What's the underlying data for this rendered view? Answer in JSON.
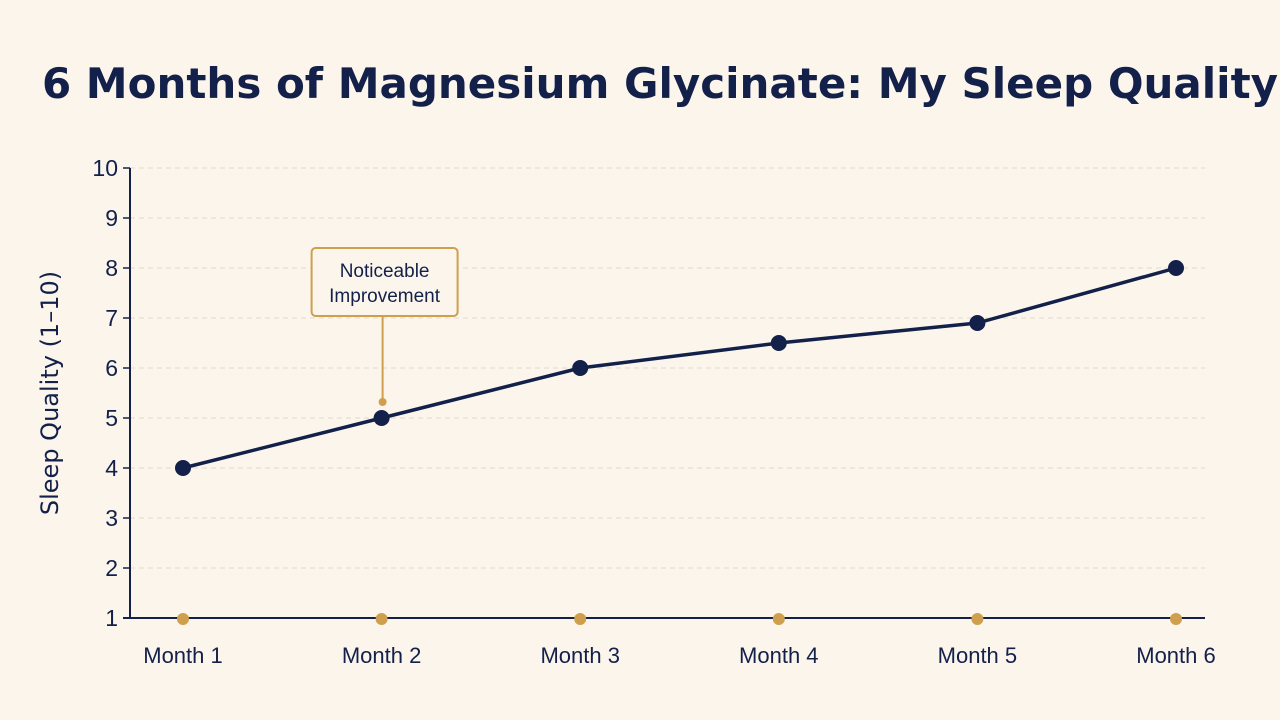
{
  "chart_data": {
    "type": "line",
    "title": "6 Months of Magnesium Glycinate: My Sleep Quality",
    "xlabel": "",
    "ylabel": "Sleep Quality (1–10)",
    "categories": [
      "Month 1",
      "Month 2",
      "Month 3",
      "Month 4",
      "Month 5",
      "Month 6"
    ],
    "values": [
      4,
      5,
      6,
      6.5,
      6.9,
      8
    ],
    "ylim": [
      1,
      10
    ],
    "yticks": [
      "1",
      "2",
      "3",
      "4",
      "5",
      "6",
      "7",
      "8",
      "9",
      "10"
    ],
    "grid": true,
    "legend": "none",
    "annotations": [
      {
        "category": "Month 2",
        "lines": [
          "Noticeable",
          "Improvement"
        ]
      }
    ],
    "colors": {
      "line": "#13204a",
      "accent": "#cf9f4e",
      "background": "#fbf5ec",
      "grid": "#e2dccb"
    }
  }
}
